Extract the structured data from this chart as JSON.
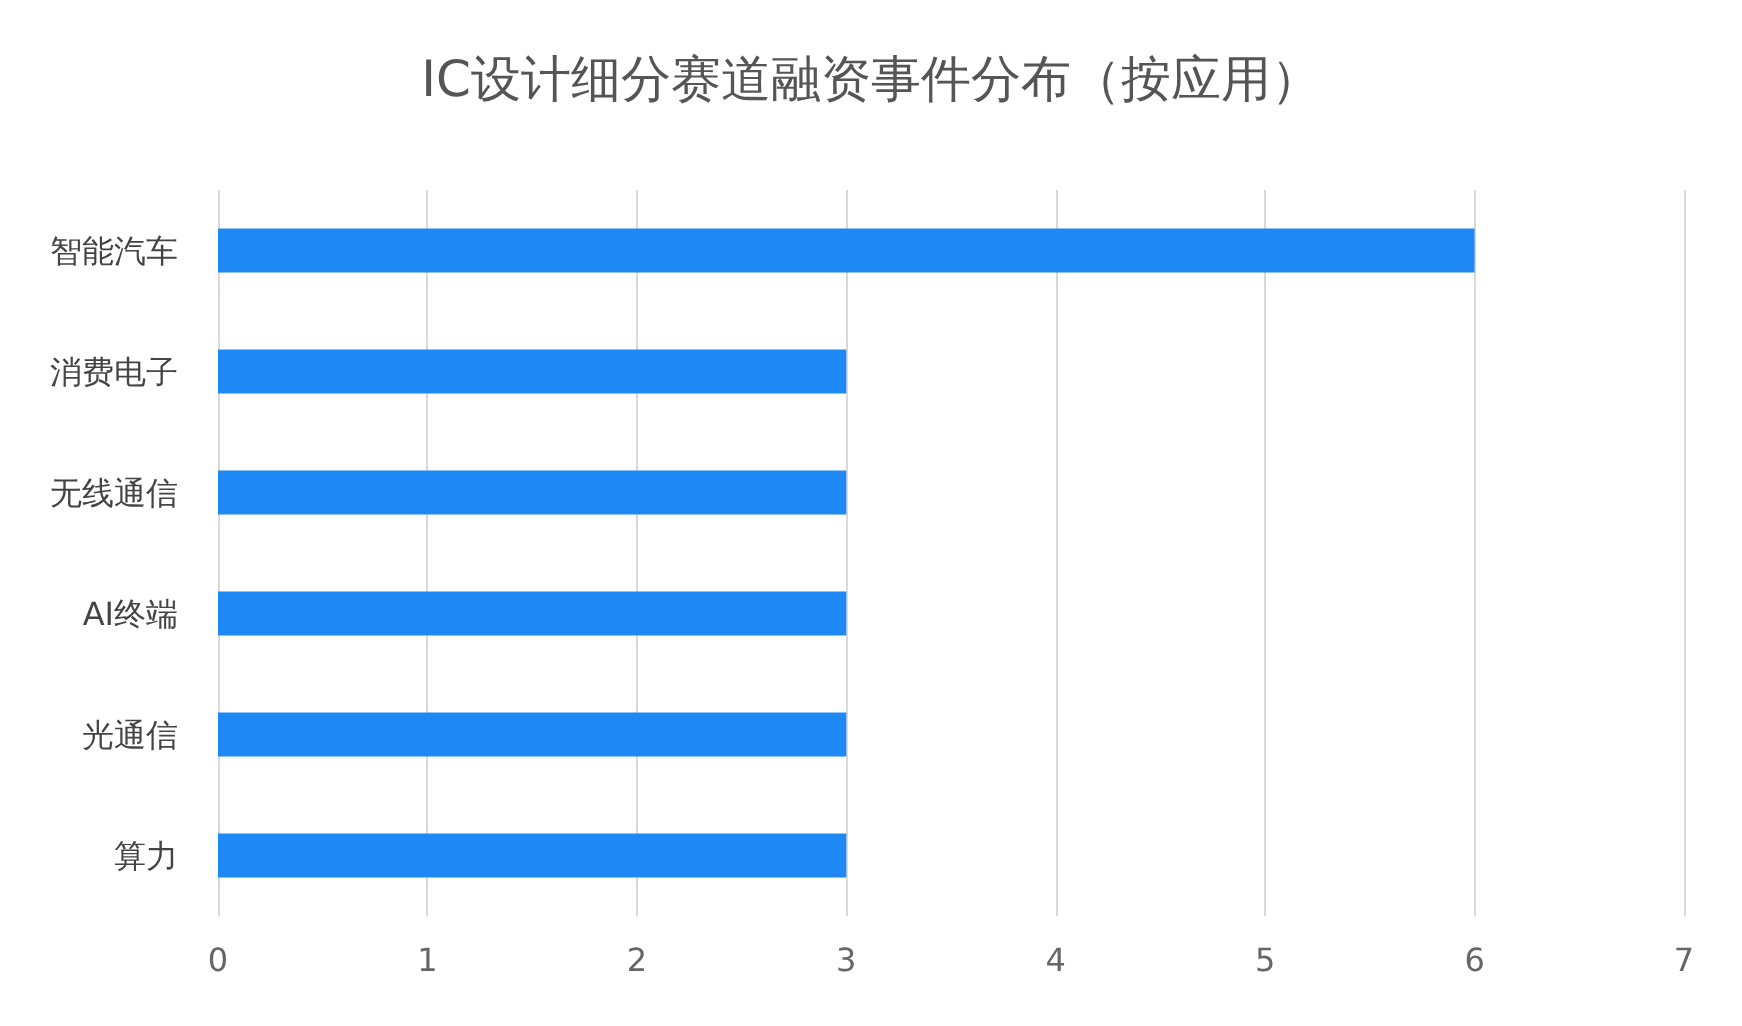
{
  "chart_data": {
    "type": "bar",
    "orientation": "horizontal",
    "title": "IC设计细分赛道融资事件分布（按应用）",
    "categories": [
      "智能汽车",
      "消费电子",
      "无线通信",
      "AI终端",
      "光通信",
      "算力"
    ],
    "values": [
      6,
      3,
      3,
      3,
      3,
      3
    ],
    "color": "#1e88f5",
    "xlim": [
      0,
      7
    ],
    "xticks": [
      0,
      1,
      2,
      3,
      4,
      5,
      6,
      7
    ],
    "grid": "x"
  }
}
